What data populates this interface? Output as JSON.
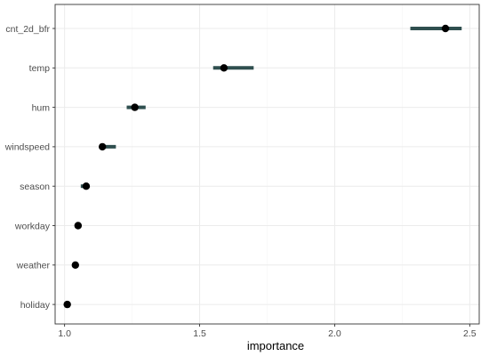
{
  "chart_data": {
    "type": "dot-interval",
    "xlabel": "importance",
    "ylabel": "",
    "xlim": [
      0.965,
      2.535
    ],
    "x_ticks": [
      1.0,
      1.5,
      2.0,
      2.5
    ],
    "x_tick_labels": [
      "1.0",
      "1.5",
      "2.0",
      "2.5"
    ],
    "grid": true,
    "colors": {
      "point": "#000000",
      "interval": "#2f4f4f"
    },
    "features": [
      {
        "name": "cnt_2d_bfr",
        "importance": 2.41,
        "lower": 2.28,
        "upper": 2.47
      },
      {
        "name": "temp",
        "importance": 1.59,
        "lower": 1.55,
        "upper": 1.7
      },
      {
        "name": "hum",
        "importance": 1.26,
        "lower": 1.23,
        "upper": 1.3
      },
      {
        "name": "windspeed",
        "importance": 1.14,
        "lower": 1.13,
        "upper": 1.19
      },
      {
        "name": "season",
        "importance": 1.08,
        "lower": 1.06,
        "upper": 1.08
      },
      {
        "name": "workday",
        "importance": 1.05,
        "lower": 1.04,
        "upper": 1.06
      },
      {
        "name": "weather",
        "importance": 1.04,
        "lower": 1.04,
        "upper": 1.05
      },
      {
        "name": "holiday",
        "importance": 1.01,
        "lower": 1.0,
        "upper": 1.01
      }
    ]
  }
}
